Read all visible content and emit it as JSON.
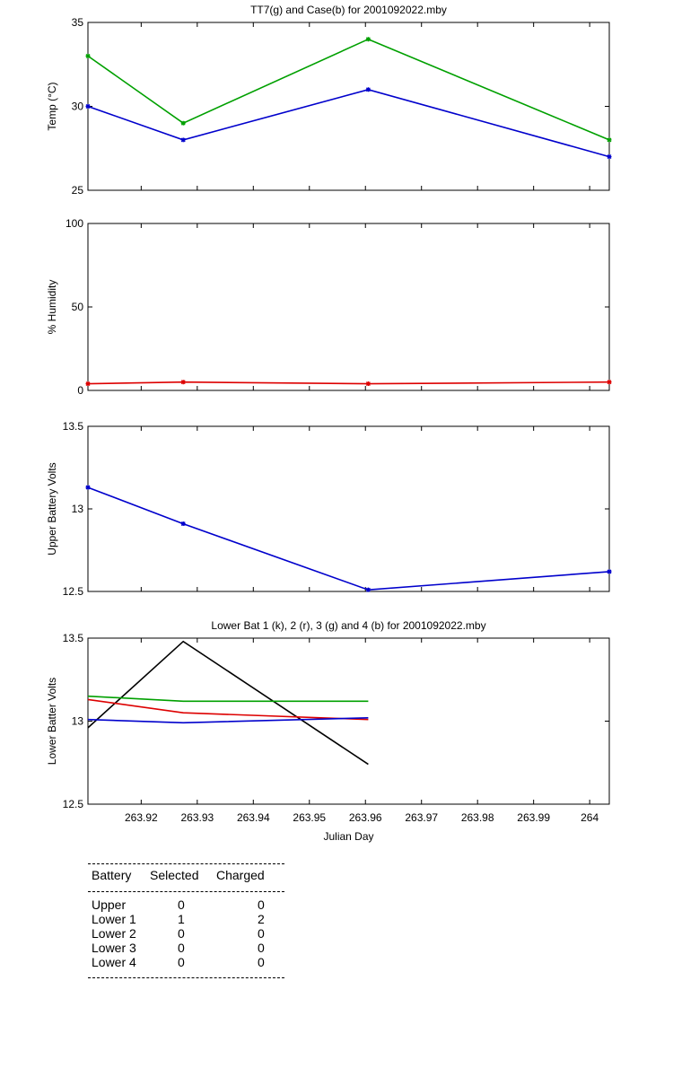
{
  "chart_data": [
    {
      "type": "line",
      "title": "TT7(g) and Case(b) for 2001092022.mby",
      "xlabel": "",
      "ylabel": "Temp  (°C)",
      "xlim": [
        263.9105,
        264.0035
      ],
      "ylim": [
        25,
        35
      ],
      "yticks": [
        25,
        30,
        35
      ],
      "ytick_labels": [
        "25",
        "30",
        "35"
      ],
      "grid": false,
      "series": [
        {
          "name": "TT7",
          "color": "#00a000",
          "marker": true,
          "x": [
            263.9105,
            263.9275,
            263.9605,
            264.0035
          ],
          "y": [
            33,
            29,
            34,
            28
          ]
        },
        {
          "name": "Case",
          "color": "#0000cc",
          "marker": true,
          "x": [
            263.9105,
            263.9275,
            263.9605,
            264.0035
          ],
          "y": [
            30,
            28,
            31,
            27
          ]
        }
      ]
    },
    {
      "type": "line",
      "title": "",
      "xlabel": "",
      "ylabel": "% Humidity",
      "xlim": [
        263.9105,
        264.0035
      ],
      "ylim": [
        0,
        100
      ],
      "yticks": [
        0,
        50,
        100
      ],
      "ytick_labels": [
        "0",
        "50",
        "100"
      ],
      "grid": false,
      "series": [
        {
          "name": "",
          "color": "#dd0000",
          "marker": true,
          "x": [
            263.9105,
            263.9275,
            263.9605,
            264.0035
          ],
          "y": [
            4,
            5,
            4,
            5
          ]
        }
      ]
    },
    {
      "type": "line",
      "title": "",
      "xlabel": "",
      "ylabel": "Upper Battery Volts",
      "xlim": [
        263.9105,
        264.0035
      ],
      "ylim": [
        12.5,
        13.5
      ],
      "yticks": [
        12.5,
        13,
        13.5
      ],
      "ytick_labels": [
        "12.5",
        "13",
        "13.5"
      ],
      "grid": false,
      "series": [
        {
          "name": "",
          "color": "#0000cc",
          "marker": true,
          "x": [
            263.9105,
            263.9275,
            263.9605,
            264.0035
          ],
          "y": [
            13.13,
            12.91,
            12.51,
            12.62
          ]
        }
      ]
    },
    {
      "type": "line",
      "title": "Lower Bat 1 (k), 2 (r), 3 (g) and 4 (b) for 2001092022.mby",
      "xlabel": "Julian Day",
      "ylabel": "Lower Batter Volts",
      "xlim": [
        263.9105,
        264.0035
      ],
      "ylim": [
        12.5,
        13.5
      ],
      "yticks": [
        12.5,
        13,
        13.5
      ],
      "ytick_labels": [
        "12.5",
        "13",
        "13.5"
      ],
      "xticks": [
        263.92,
        263.93,
        263.94,
        263.95,
        263.96,
        263.97,
        263.98,
        263.99,
        264
      ],
      "xtick_labels": [
        "263.92",
        "263.93",
        "263.94",
        "263.95",
        "263.96",
        "263.97",
        "263.98",
        "263.99",
        "264"
      ],
      "grid": false,
      "series": [
        {
          "name": "Lower Bat 1",
          "color": "#000000",
          "marker": false,
          "x": [
            263.9105,
            263.9275,
            263.9605
          ],
          "y": [
            12.96,
            13.48,
            12.74
          ]
        },
        {
          "name": "Lower Bat 2",
          "color": "#dd0000",
          "marker": false,
          "x": [
            263.9105,
            263.9275,
            263.9605
          ],
          "y": [
            13.13,
            13.05,
            13.01
          ]
        },
        {
          "name": "Lower Bat 3",
          "color": "#00a000",
          "marker": false,
          "x": [
            263.9105,
            263.9275,
            263.9605
          ],
          "y": [
            13.15,
            13.12,
            13.12
          ]
        },
        {
          "name": "Lower Bat 4",
          "color": "#0000cc",
          "marker": false,
          "x": [
            263.9105,
            263.9275,
            263.9605
          ],
          "y": [
            13.01,
            12.99,
            13.02
          ]
        }
      ]
    }
  ],
  "battery_table": {
    "headers": [
      "Battery",
      "Selected",
      "Charged"
    ],
    "rows": [
      {
        "battery": "Upper",
        "selected": "0",
        "charged": "0"
      },
      {
        "battery": "Lower 1",
        "selected": "1",
        "charged": "2"
      },
      {
        "battery": "Lower 2",
        "selected": "0",
        "charged": "0"
      },
      {
        "battery": "Lower 3",
        "selected": "0",
        "charged": "0"
      },
      {
        "battery": "Lower 4",
        "selected": "0",
        "charged": "0"
      }
    ]
  }
}
